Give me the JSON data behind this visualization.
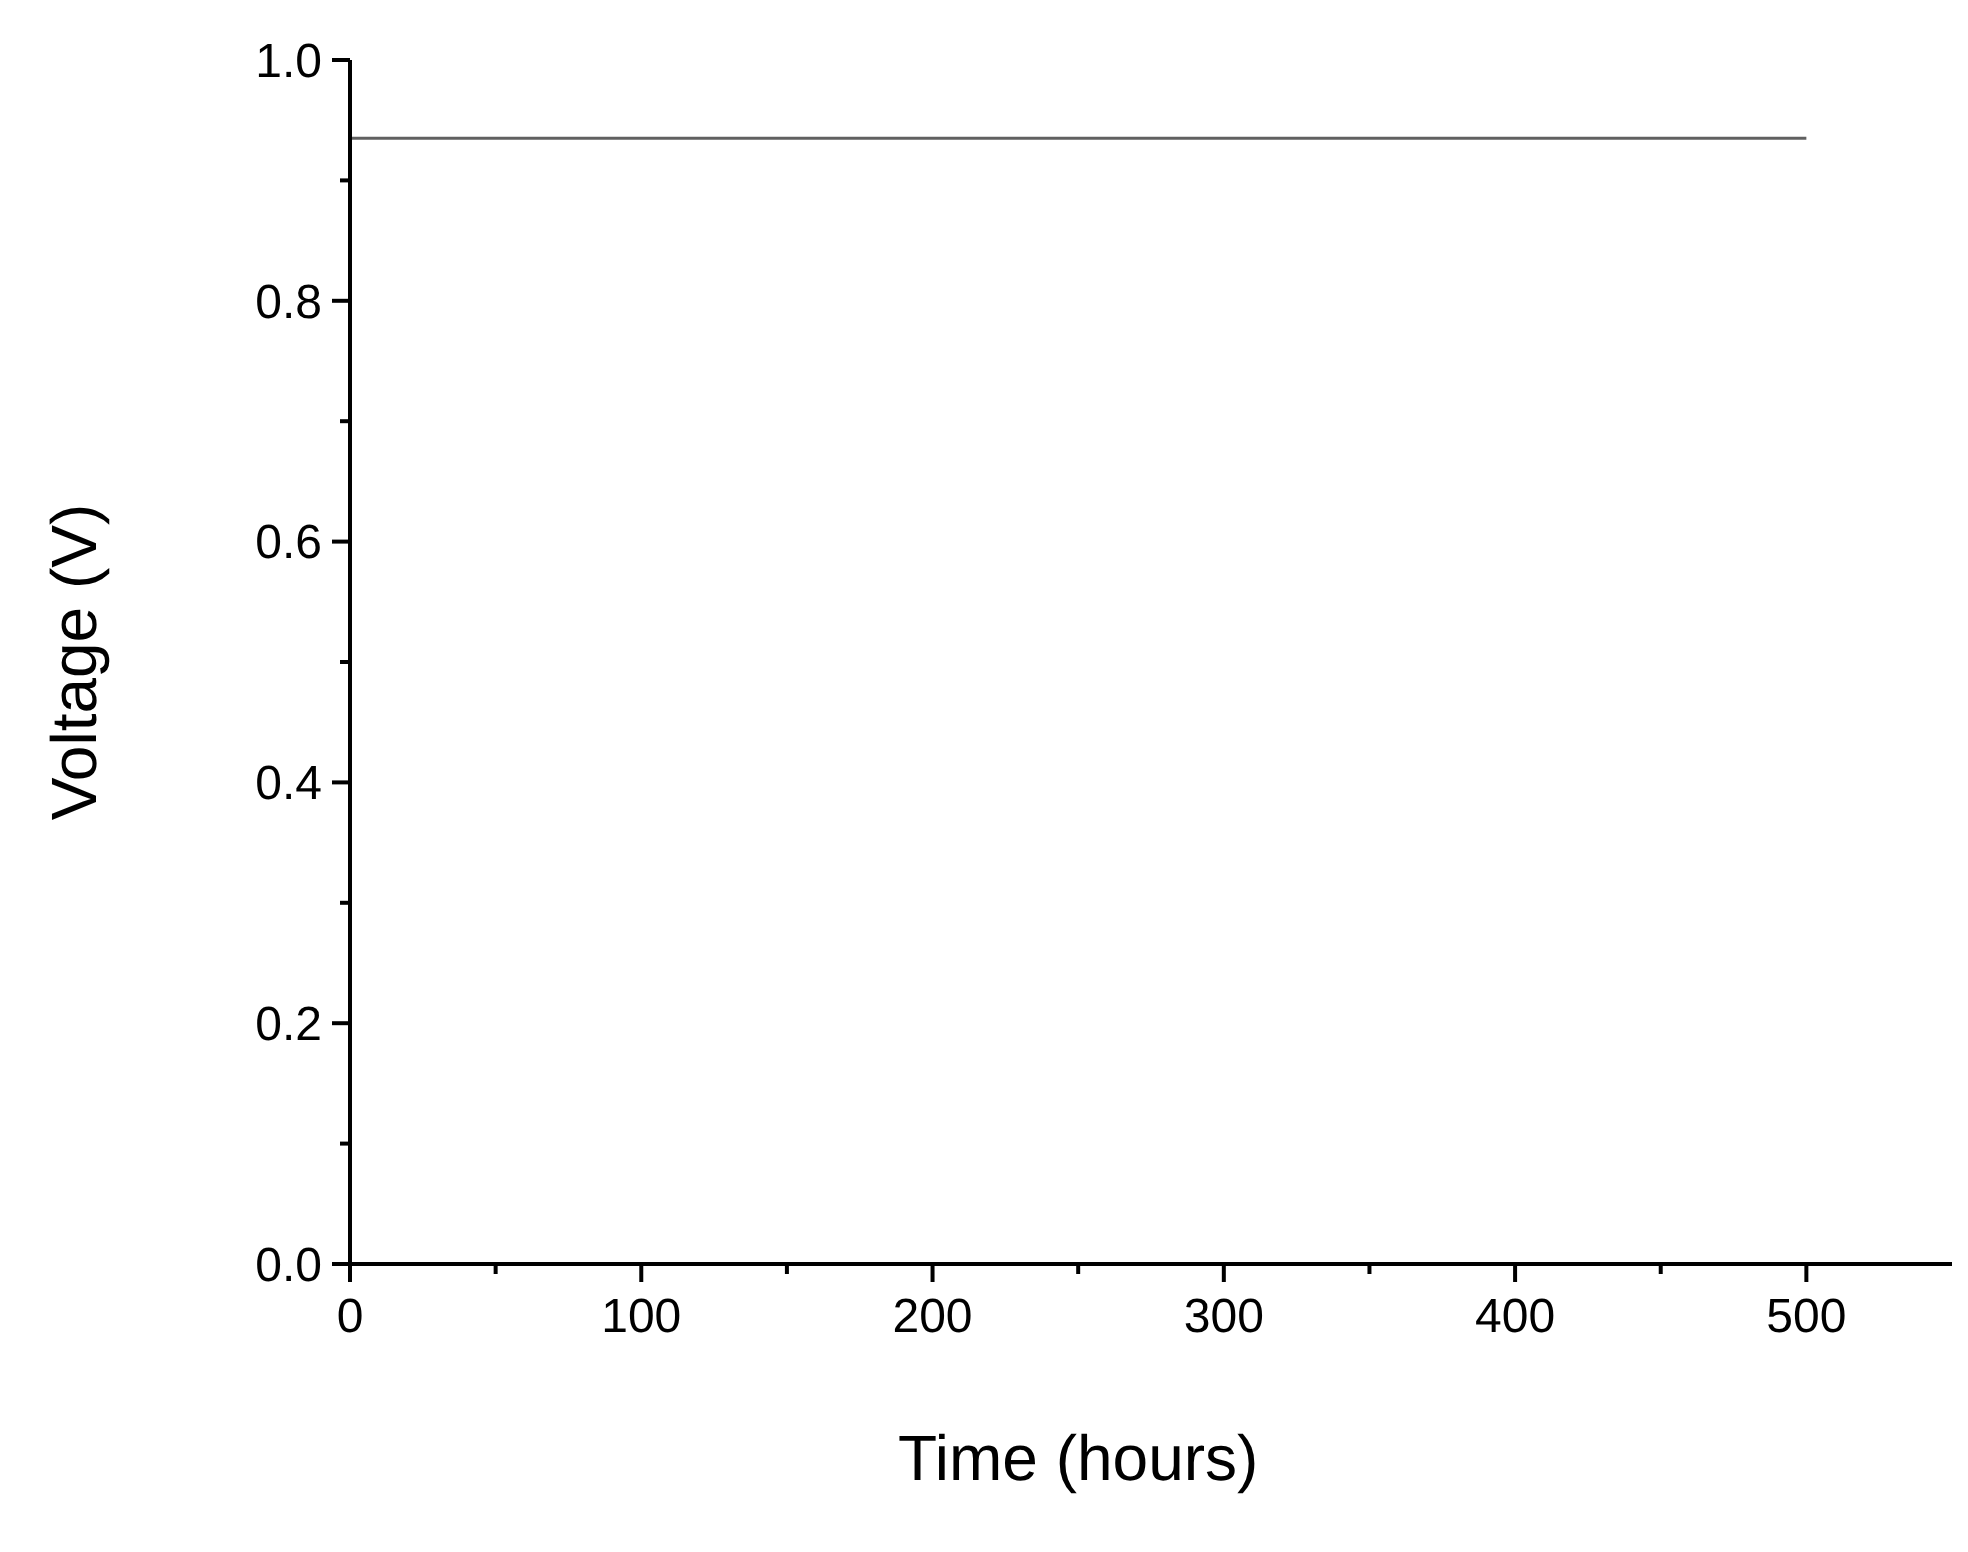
{
  "chart_data": {
    "type": "line",
    "xlabel": "Time (hours)",
    "ylabel": "Voltage (V)",
    "x": [
      0,
      500
    ],
    "series": [
      {
        "color": "#606060",
        "values": [
          0.935,
          0.935
        ]
      }
    ],
    "xlim": [
      0,
      550
    ],
    "ylim": [
      0,
      1.0
    ],
    "xticks": [
      0,
      {
        "value": 50,
        "label": null
      },
      100,
      {
        "value": 150,
        "label": null
      },
      200,
      {
        "value": 250,
        "label": null
      },
      300,
      {
        "value": 350,
        "label": null
      },
      400,
      {
        "value": 450,
        "label": null
      },
      500
    ],
    "yticks": [
      {
        "value": 0,
        "label": "0.0"
      },
      {
        "value": 0.1,
        "label": null
      },
      0.2,
      {
        "value": 0.3,
        "label": null
      },
      0.4,
      {
        "value": 0.5,
        "label": null
      },
      0.6,
      {
        "value": 0.7,
        "label": null
      },
      0.8,
      {
        "value": 0.9,
        "label": null
      },
      {
        "value": 1.0,
        "label": "1.0"
      }
    ],
    "marker": "none",
    "line_style": "solid"
  }
}
